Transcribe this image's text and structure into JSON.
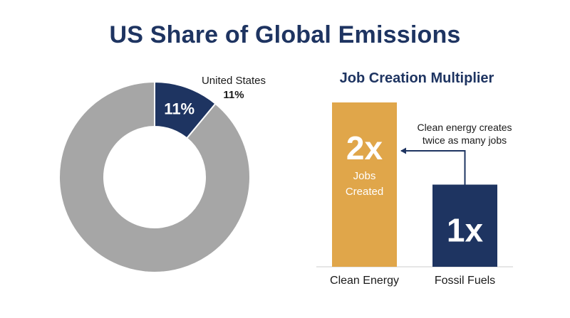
{
  "title": "US Share of Global Emissions",
  "colors": {
    "navy": "#1e3461",
    "gray": "#a6a6a6",
    "gold": "#e0a64a",
    "text": "#1a1a1a",
    "axis": "#cccccc"
  },
  "chart_data": [
    {
      "type": "pie",
      "variant": "donut",
      "title": "",
      "slices": [
        {
          "label": "United States",
          "value": 11,
          "display": "11%",
          "color": "#1e3461"
        },
        {
          "label": "",
          "value": 89,
          "display": "",
          "color": "#a6a6a6"
        }
      ],
      "callout": {
        "name": "United States",
        "value": "11%"
      }
    },
    {
      "type": "bar",
      "title": "Job Creation Multiplier",
      "categories": [
        "Clean Energy",
        "Fossil Fuels"
      ],
      "values": [
        2,
        1
      ],
      "bar_labels": [
        "2x",
        "1x"
      ],
      "bar_sublabels": [
        "Jobs\nCreated",
        ""
      ],
      "colors": [
        "#e0a64a",
        "#1e3461"
      ],
      "ylim": [
        0,
        2
      ],
      "annotation": "Clean energy creates\ntwice as many jobs"
    }
  ]
}
